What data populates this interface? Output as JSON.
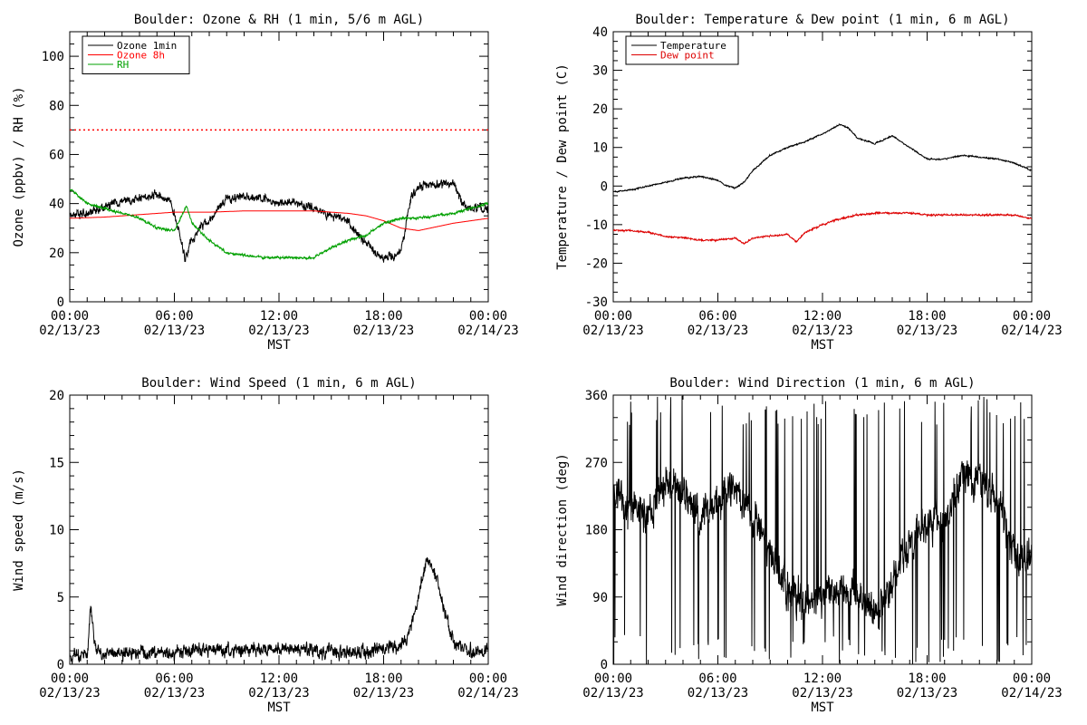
{
  "chart_data": [
    {
      "type": "line",
      "title": "Boulder: Ozone & RH (1 min, 5/6 m AGL)",
      "xlabel": "MST",
      "ylabel": "Ozone (ppbv) / RH (%)",
      "xlim": [
        "02/13/23 00:00",
        "02/14/23 00:00"
      ],
      "ylim": [
        0,
        110
      ],
      "x_ticks": [
        {
          "time": "00:00",
          "date": "02/13/23"
        },
        {
          "time": "06:00",
          "date": "02/13/23"
        },
        {
          "time": "12:00",
          "date": "02/13/23"
        },
        {
          "time": "18:00",
          "date": "02/13/23"
        },
        {
          "time": "00:00",
          "date": "02/14/23"
        }
      ],
      "y_ticks": [
        0,
        20,
        40,
        60,
        80,
        100
      ],
      "grid": false,
      "legend_position": "top-left",
      "reference_lines": [
        {
          "y": 70,
          "color": "#ff0000",
          "style": "dotted"
        }
      ],
      "series": [
        {
          "name": "Ozone 1min",
          "color": "#000000",
          "noise": 2.5,
          "x_hours": [
            0,
            1,
            2,
            3,
            4,
            5,
            5.8,
            6.2,
            6.6,
            7,
            7.5,
            8,
            8.5,
            9,
            10,
            11,
            12,
            13,
            14,
            15,
            16,
            16.5,
            17,
            17.5,
            18,
            18.5,
            19,
            19.3,
            19.6,
            20,
            21,
            22,
            22.5,
            23,
            24
          ],
          "y": [
            36,
            36,
            39,
            41,
            42,
            44,
            41,
            30,
            18,
            25,
            30,
            33,
            38,
            42,
            43,
            42,
            41,
            40,
            38,
            35,
            33,
            28,
            24,
            20,
            18,
            19,
            21,
            32,
            43,
            47,
            48,
            48,
            40,
            38,
            38
          ]
        },
        {
          "name": "Ozone 8h",
          "color": "#ff0000",
          "noise": 0,
          "x_hours": [
            0,
            2,
            4,
            6,
            8,
            10,
            12,
            14,
            15,
            16,
            17,
            18,
            19,
            20,
            21,
            22,
            24
          ],
          "y": [
            34,
            34.5,
            35.5,
            36.5,
            36.5,
            37,
            37,
            37,
            36.5,
            36,
            35,
            33,
            30,
            29,
            30.5,
            32,
            34
          ]
        },
        {
          "name": "RH",
          "color": "#00a000",
          "noise": 0.7,
          "x_hours": [
            0,
            1,
            2,
            3,
            4,
            5,
            6,
            6.7,
            7,
            8,
            9,
            10,
            11,
            12,
            13,
            14,
            15,
            16,
            17,
            18,
            19,
            20,
            21,
            22,
            23,
            24
          ],
          "y": [
            46,
            40,
            38,
            36,
            34,
            30,
            29,
            39,
            32,
            25,
            20,
            19,
            18,
            18,
            18,
            18,
            22,
            25,
            27,
            32,
            34,
            34,
            35,
            36,
            38,
            40
          ]
        }
      ]
    },
    {
      "type": "line",
      "title": "Boulder: Temperature & Dew point (1 min, 6 m AGL)",
      "xlabel": "MST",
      "ylabel": "Temperature / Dew point (C)",
      "xlim": [
        "02/13/23 00:00",
        "02/14/23 00:00"
      ],
      "ylim": [
        -30,
        40
      ],
      "x_ticks": [
        {
          "time": "00:00",
          "date": "02/13/23"
        },
        {
          "time": "06:00",
          "date": "02/13/23"
        },
        {
          "time": "12:00",
          "date": "02/13/23"
        },
        {
          "time": "18:00",
          "date": "02/13/23"
        },
        {
          "time": "00:00",
          "date": "02/14/23"
        }
      ],
      "y_ticks": [
        -30,
        -20,
        -10,
        0,
        10,
        20,
        30,
        40
      ],
      "grid": false,
      "legend_position": "top-left",
      "series": [
        {
          "name": "Temperature",
          "color": "#000000",
          "noise": 0.25,
          "x_hours": [
            0,
            1,
            2,
            3,
            4,
            5,
            6,
            6.5,
            7,
            7.5,
            8,
            9,
            10,
            11,
            12,
            13,
            13.5,
            14,
            15,
            15.5,
            16,
            17,
            18,
            19,
            20,
            21,
            22,
            23,
            24
          ],
          "y": [
            -1.5,
            -1,
            0,
            1,
            2,
            2.5,
            1.5,
            0,
            -0.5,
            1,
            4,
            8,
            10,
            11.5,
            13.5,
            16,
            15,
            12.5,
            11,
            12,
            13,
            10,
            7,
            7,
            8,
            7.5,
            7,
            6,
            4
          ]
        },
        {
          "name": "Dew point",
          "color": "#dd0000",
          "noise": 0.3,
          "x_hours": [
            0,
            1,
            2,
            3,
            4,
            5,
            6,
            7,
            7.5,
            8,
            9,
            10,
            10.5,
            11,
            12,
            13,
            14,
            15,
            16,
            17,
            18,
            19,
            20,
            21,
            22,
            23,
            24
          ],
          "y": [
            -11.5,
            -11.5,
            -12,
            -13,
            -13.5,
            -14,
            -14,
            -13.5,
            -15,
            -13.5,
            -13,
            -12.5,
            -14.5,
            -12,
            -10,
            -8.5,
            -7.5,
            -7,
            -7,
            -7,
            -7.5,
            -7.5,
            -7.5,
            -7.5,
            -7.5,
            -7.5,
            -8.5
          ]
        }
      ]
    },
    {
      "type": "line",
      "title": "Boulder: Wind Speed (1 min, 6 m AGL)",
      "xlabel": "MST",
      "ylabel": "Wind speed (m/s)",
      "xlim": [
        "02/13/23 00:00",
        "02/14/23 00:00"
      ],
      "ylim": [
        0,
        20
      ],
      "x_ticks": [
        {
          "time": "00:00",
          "date": "02/13/23"
        },
        {
          "time": "06:00",
          "date": "02/13/23"
        },
        {
          "time": "12:00",
          "date": "02/13/23"
        },
        {
          "time": "18:00",
          "date": "02/13/23"
        },
        {
          "time": "00:00",
          "date": "02/14/23"
        }
      ],
      "y_ticks": [
        0,
        5,
        10,
        15,
        20
      ],
      "grid": false,
      "series": [
        {
          "color": "#000000",
          "noise": 0.7,
          "floor": 0,
          "x_hours": [
            0,
            1,
            1.2,
            1.4,
            1.7,
            2,
            4,
            6,
            8,
            10,
            12,
            14,
            16,
            18,
            19,
            19.5,
            20,
            20.5,
            21,
            21.5,
            22,
            23,
            24
          ],
          "y": [
            0.5,
            0.8,
            4.5,
            1.5,
            0.8,
            0.8,
            0.8,
            0.8,
            1.2,
            1.0,
            1.2,
            1.0,
            0.9,
            1.0,
            1.5,
            2.5,
            5,
            8,
            6.5,
            4,
            1.5,
            1.0,
            1.0
          ]
        }
      ]
    },
    {
      "type": "line",
      "title": "Boulder: Wind Direction (1 min, 6 m AGL)",
      "xlabel": "MST",
      "ylabel": "Wind direction (deg)",
      "xlim": [
        "02/13/23 00:00",
        "02/14/23 00:00"
      ],
      "ylim": [
        0,
        360
      ],
      "x_ticks": [
        {
          "time": "00:00",
          "date": "02/13/23"
        },
        {
          "time": "06:00",
          "date": "02/13/23"
        },
        {
          "time": "12:00",
          "date": "02/13/23"
        },
        {
          "time": "18:00",
          "date": "02/13/23"
        },
        {
          "time": "00:00",
          "date": "02/14/23"
        }
      ],
      "y_ticks": [
        0,
        90,
        180,
        270,
        360
      ],
      "grid": false,
      "series": [
        {
          "color": "#000000",
          "noise": 35,
          "spikes": 0.07,
          "floor": 0,
          "ceil": 360,
          "x_hours": [
            0,
            1,
            2,
            3,
            4,
            5,
            6,
            7,
            8,
            9,
            10,
            11,
            12,
            13,
            14,
            15,
            16,
            17,
            18,
            19,
            20,
            21,
            22,
            23,
            24
          ],
          "y": [
            230,
            210,
            200,
            240,
            230,
            200,
            220,
            240,
            200,
            150,
            100,
            80,
            90,
            100,
            90,
            60,
            110,
            160,
            190,
            190,
            250,
            240,
            220,
            150,
            140
          ]
        }
      ]
    }
  ]
}
